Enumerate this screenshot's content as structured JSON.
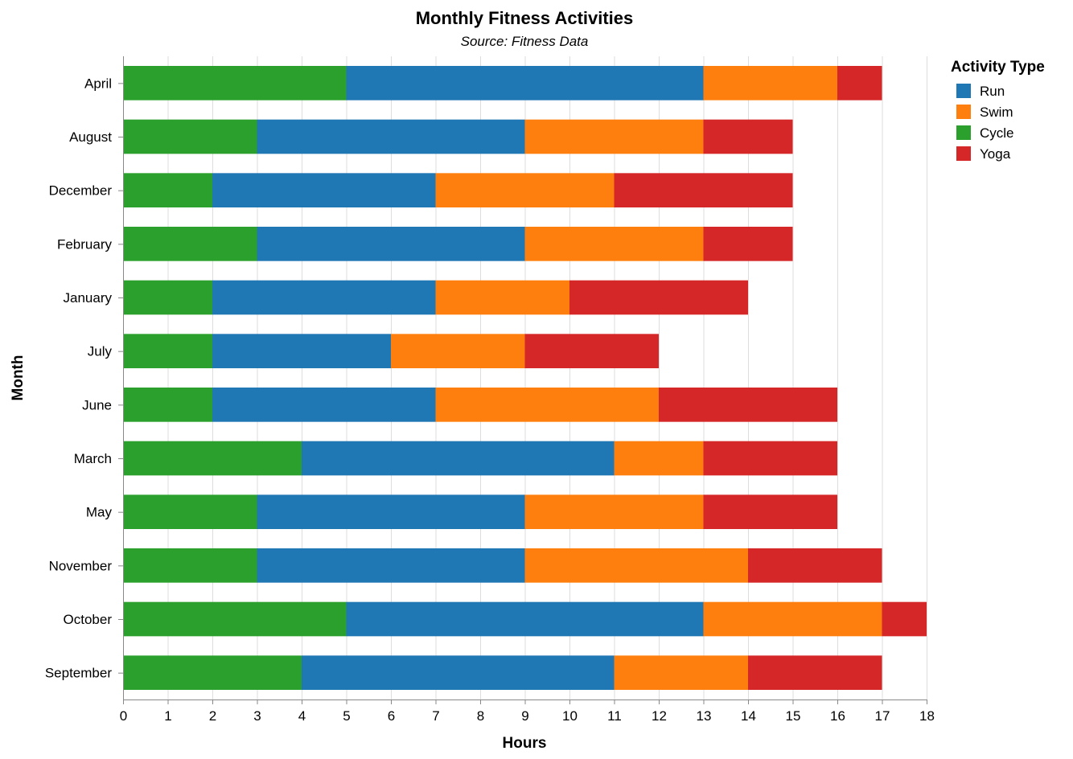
{
  "chart_data": {
    "type": "bar",
    "orientation": "horizontal",
    "stacked": true,
    "title": "Monthly Fitness Activities",
    "subtitle": "Source: Fitness Data",
    "xlabel": "Hours",
    "ylabel": "Month",
    "xlim": [
      0,
      18
    ],
    "xticks": [
      0,
      1,
      2,
      3,
      4,
      5,
      6,
      7,
      8,
      9,
      10,
      11,
      12,
      13,
      14,
      15,
      16,
      17,
      18
    ],
    "grid": true,
    "legend_title": "Activity Type",
    "legend_position": "top-right",
    "legend_order": [
      "Run",
      "Swim",
      "Cycle",
      "Yoga"
    ],
    "stack_order": [
      "Cycle",
      "Run",
      "Swim",
      "Yoga"
    ],
    "categories": [
      "April",
      "August",
      "December",
      "February",
      "January",
      "July",
      "June",
      "March",
      "May",
      "November",
      "October",
      "September"
    ],
    "series": [
      {
        "name": "Cycle",
        "color": "#2ca02c",
        "values": [
          5,
          3,
          2,
          3,
          2,
          2,
          2,
          4,
          3,
          3,
          5,
          4
        ]
      },
      {
        "name": "Run",
        "color": "#1f77b4",
        "values": [
          8,
          6,
          5,
          6,
          5,
          4,
          5,
          7,
          6,
          6,
          8,
          7
        ]
      },
      {
        "name": "Swim",
        "color": "#ff7f0e",
        "values": [
          3,
          4,
          4,
          4,
          3,
          3,
          5,
          2,
          4,
          5,
          4,
          3
        ]
      },
      {
        "name": "Yoga",
        "color": "#d62728",
        "values": [
          1,
          2,
          4,
          2,
          4,
          3,
          4,
          3,
          3,
          3,
          1,
          3
        ]
      }
    ]
  }
}
